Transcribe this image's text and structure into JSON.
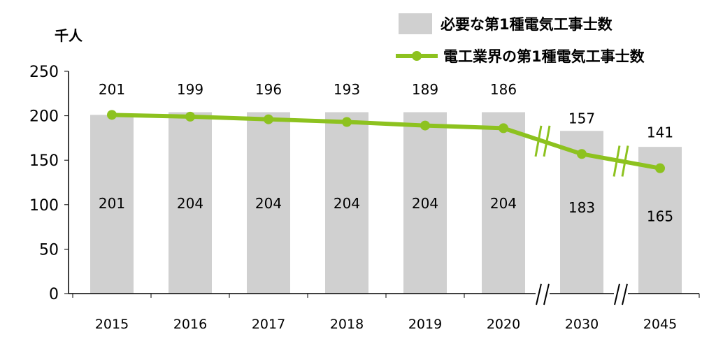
{
  "chart_data": {
    "type": "bar",
    "unit_label": "千人",
    "categories": [
      "2015",
      "2016",
      "2017",
      "2018",
      "2019",
      "2020",
      "2030",
      "2045"
    ],
    "series": [
      {
        "name": "必要な第1種電気工事士数",
        "kind": "bar",
        "values": [
          201,
          204,
          204,
          204,
          204,
          204,
          183,
          165
        ]
      },
      {
        "name": "電工業界の第1種電気工事士数",
        "kind": "line",
        "values": [
          201,
          199,
          196,
          193,
          189,
          186,
          157,
          141
        ]
      }
    ],
    "yticks": [
      "0",
      "50",
      "100",
      "150",
      "200",
      "250"
    ],
    "ylim": [
      0,
      250
    ],
    "legend_position": "top-right",
    "colors": {
      "bar": "#d0d0d0",
      "line": "#8dc21f",
      "break_mark": "#8dc21f"
    }
  }
}
